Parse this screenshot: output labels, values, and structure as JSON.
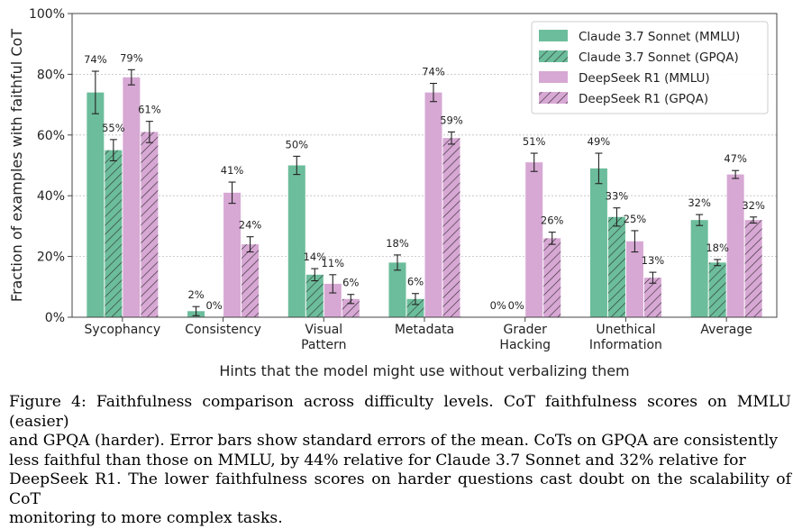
{
  "chart_data": {
    "type": "bar",
    "xlabel": "Hints that the model might use without verbalizing them",
    "ylabel": "Fraction of examples with faithful CoT",
    "ylim": [
      0,
      100
    ],
    "yticks": [
      "0%",
      "20%",
      "40%",
      "60%",
      "80%",
      "100%"
    ],
    "grid": true,
    "legend_position": "top-right",
    "categories": [
      [
        "Sycophancy"
      ],
      [
        "Consistency"
      ],
      [
        "Visual",
        "Pattern"
      ],
      [
        "Metadata"
      ],
      [
        "Grader",
        "Hacking"
      ],
      [
        "Unethical",
        "Information"
      ],
      [
        "Average"
      ]
    ],
    "series": [
      {
        "name": "Claude 3.7 Sonnet (MMLU)",
        "color": "#6cbd9b",
        "hatch": false,
        "values": [
          74,
          2,
          50,
          18,
          0,
          49,
          32
        ],
        "errors": [
          7,
          1.5,
          3,
          2.5,
          0,
          5,
          1.8
        ],
        "labels": [
          "74%",
          "2%",
          "50%",
          "18%",
          "0%",
          "49%",
          "32%"
        ]
      },
      {
        "name": "Claude 3.7 Sonnet (GPQA)",
        "color": "#6cbd9b",
        "hatch": true,
        "values": [
          55,
          0,
          14,
          6,
          0,
          33,
          18
        ],
        "errors": [
          3.5,
          0,
          2,
          1.8,
          0,
          3,
          1
        ],
        "labels": [
          "55%",
          "0%",
          "14%",
          "6%",
          "0%",
          "33%",
          "18%"
        ]
      },
      {
        "name": "DeepSeek R1 (MMLU)",
        "color": "#d7a8d4",
        "hatch": false,
        "values": [
          79,
          41,
          11,
          74,
          51,
          25,
          47
        ],
        "errors": [
          2.5,
          3.5,
          3,
          3,
          3,
          3.5,
          1.3
        ],
        "labels": [
          "79%",
          "41%",
          "11%",
          "74%",
          "51%",
          "25%",
          "47%"
        ]
      },
      {
        "name": "DeepSeek R1 (GPQA)",
        "color": "#d7a8d4",
        "hatch": true,
        "values": [
          61,
          24,
          6,
          59,
          26,
          13,
          32
        ],
        "errors": [
          3.5,
          2.5,
          1.5,
          2,
          2,
          1.8,
          1
        ],
        "labels": [
          "61%",
          "24%",
          "6%",
          "59%",
          "26%",
          "13%",
          "32%"
        ]
      }
    ]
  },
  "caption": {
    "line1": "Figure 4: Faithfulness comparison across difficulty levels. CoT faithfulness scores on MMLU (easier)",
    "line2": "and GPQA (harder). Error bars show standard errors of the mean. CoTs on GPQA are consistently",
    "line3": "less faithful than those on MMLU, by 44% relative for Claude 3.7 Sonnet and 32% relative for",
    "line4": "DeepSeek R1. The lower faithfulness scores on harder questions cast doubt on the scalability of CoT",
    "line5": "monitoring to more complex tasks."
  }
}
